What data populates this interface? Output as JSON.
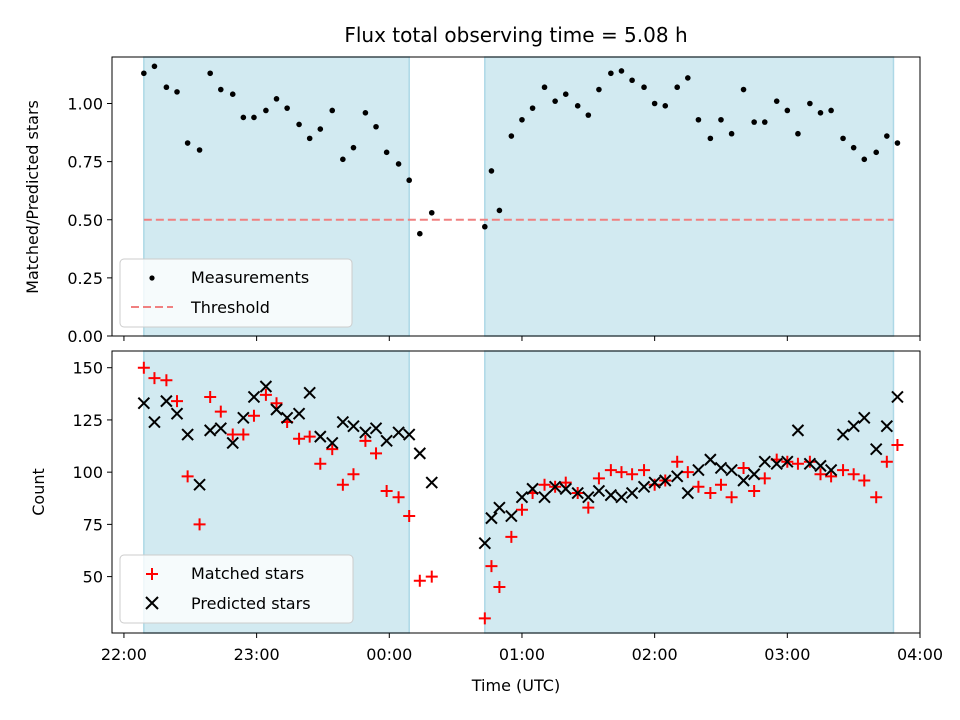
{
  "chart_data": [
    {
      "type": "scatter",
      "title": "Flux total observing time = 5.08 h",
      "xlabel": "",
      "ylabel": "Matched/Predicted stars",
      "xlim": [
        -0.09,
        6.0
      ],
      "ylim": [
        0.0,
        1.2
      ],
      "yticks": [
        0.0,
        0.25,
        0.5,
        0.75,
        1.0
      ],
      "ytick_labels": [
        "0.00",
        "0.25",
        "0.50",
        "0.75",
        "1.00"
      ],
      "grid": false,
      "legend": "lower-left",
      "shaded_intervals": [
        [
          0.15,
          2.15
        ],
        [
          2.72,
          5.8
        ]
      ],
      "threshold": {
        "name": "Threshold",
        "value": 0.5,
        "color": "#f08080"
      },
      "series": [
        {
          "name": "Measurements",
          "color": "#000000",
          "marker": "dot",
          "points": [
            [
              0.15,
              1.13
            ],
            [
              0.23,
              1.16
            ],
            [
              0.32,
              1.07
            ],
            [
              0.4,
              1.05
            ],
            [
              0.48,
              0.83
            ],
            [
              0.57,
              0.8
            ],
            [
              0.65,
              1.13
            ],
            [
              0.73,
              1.06
            ],
            [
              0.82,
              1.04
            ],
            [
              0.9,
              0.94
            ],
            [
              0.98,
              0.94
            ],
            [
              1.07,
              0.97
            ],
            [
              1.15,
              1.02
            ],
            [
              1.23,
              0.98
            ],
            [
              1.32,
              0.91
            ],
            [
              1.4,
              0.85
            ],
            [
              1.48,
              0.89
            ],
            [
              1.57,
              0.97
            ],
            [
              1.65,
              0.76
            ],
            [
              1.73,
              0.81
            ],
            [
              1.82,
              0.96
            ],
            [
              1.9,
              0.9
            ],
            [
              1.98,
              0.79
            ],
            [
              2.07,
              0.74
            ],
            [
              2.15,
              0.67
            ],
            [
              2.23,
              0.44
            ],
            [
              2.32,
              0.53
            ],
            [
              2.72,
              0.47
            ],
            [
              2.77,
              0.71
            ],
            [
              2.83,
              0.54
            ],
            [
              2.92,
              0.86
            ],
            [
              3.0,
              0.93
            ],
            [
              3.08,
              0.98
            ],
            [
              3.17,
              1.07
            ],
            [
              3.25,
              1.01
            ],
            [
              3.33,
              1.04
            ],
            [
              3.42,
              0.99
            ],
            [
              3.5,
              0.95
            ],
            [
              3.58,
              1.06
            ],
            [
              3.67,
              1.13
            ],
            [
              3.75,
              1.14
            ],
            [
              3.83,
              1.1
            ],
            [
              3.92,
              1.07
            ],
            [
              4.0,
              1.0
            ],
            [
              4.08,
              0.99
            ],
            [
              4.17,
              1.07
            ],
            [
              4.25,
              1.11
            ],
            [
              4.33,
              0.93
            ],
            [
              4.42,
              0.85
            ],
            [
              4.5,
              0.93
            ],
            [
              4.58,
              0.87
            ],
            [
              4.67,
              1.06
            ],
            [
              4.75,
              0.92
            ],
            [
              4.83,
              0.92
            ],
            [
              4.92,
              1.01
            ],
            [
              5.0,
              0.97
            ],
            [
              5.08,
              0.87
            ],
            [
              5.17,
              1.0
            ],
            [
              5.25,
              0.96
            ],
            [
              5.33,
              0.97
            ],
            [
              5.42,
              0.85
            ],
            [
              5.5,
              0.81
            ],
            [
              5.58,
              0.76
            ],
            [
              5.67,
              0.79
            ],
            [
              5.75,
              0.86
            ],
            [
              5.83,
              0.83
            ]
          ]
        }
      ]
    },
    {
      "type": "scatter",
      "title": "",
      "xlabel": "Time (UTC)",
      "ylabel": "Count",
      "xlim": [
        -0.09,
        6.0
      ],
      "ylim": [
        23,
        158
      ],
      "xticks": [
        0,
        1,
        2,
        3,
        4,
        5,
        6
      ],
      "xtick_labels": [
        "22:00",
        "23:00",
        "00:00",
        "01:00",
        "02:00",
        "03:00",
        "04:00"
      ],
      "yticks": [
        50,
        75,
        100,
        125,
        150
      ],
      "ytick_labels": [
        "50",
        "75",
        "100",
        "125",
        "150"
      ],
      "grid": false,
      "legend": "lower-left",
      "shaded_intervals": [
        [
          0.15,
          2.15
        ],
        [
          2.72,
          5.8
        ]
      ],
      "series": [
        {
          "name": "Matched stars",
          "color": "#ff0000",
          "marker": "plus",
          "points": [
            [
              0.15,
              150
            ],
            [
              0.23,
              145
            ],
            [
              0.32,
              144
            ],
            [
              0.4,
              134
            ],
            [
              0.48,
              98
            ],
            [
              0.57,
              75
            ],
            [
              0.65,
              136
            ],
            [
              0.73,
              129
            ],
            [
              0.82,
              118
            ],
            [
              0.9,
              118
            ],
            [
              0.98,
              127
            ],
            [
              1.07,
              137
            ],
            [
              1.15,
              133
            ],
            [
              1.23,
              124
            ],
            [
              1.32,
              116
            ],
            [
              1.4,
              117
            ],
            [
              1.48,
              104
            ],
            [
              1.57,
              111
            ],
            [
              1.65,
              94
            ],
            [
              1.73,
              99
            ],
            [
              1.82,
              115
            ],
            [
              1.9,
              109
            ],
            [
              1.98,
              91
            ],
            [
              2.07,
              88
            ],
            [
              2.15,
              79
            ],
            [
              2.23,
              48
            ],
            [
              2.32,
              50
            ],
            [
              2.72,
              30
            ],
            [
              2.77,
              55
            ],
            [
              2.83,
              45
            ],
            [
              2.92,
              69
            ],
            [
              3.0,
              82
            ],
            [
              3.08,
              90
            ],
            [
              3.17,
              94
            ],
            [
              3.25,
              93
            ],
            [
              3.33,
              95
            ],
            [
              3.42,
              90
            ],
            [
              3.5,
              83
            ],
            [
              3.58,
              97
            ],
            [
              3.67,
              101
            ],
            [
              3.75,
              100
            ],
            [
              3.83,
              99
            ],
            [
              3.92,
              101
            ],
            [
              4.0,
              94
            ],
            [
              4.08,
              96
            ],
            [
              4.17,
              105
            ],
            [
              4.25,
              100
            ],
            [
              4.33,
              93
            ],
            [
              4.42,
              90
            ],
            [
              4.5,
              94
            ],
            [
              4.58,
              88
            ],
            [
              4.67,
              102
            ],
            [
              4.75,
              91
            ],
            [
              4.83,
              97
            ],
            [
              4.92,
              106
            ],
            [
              5.0,
              105
            ],
            [
              5.08,
              104
            ],
            [
              5.17,
              105
            ],
            [
              5.25,
              99
            ],
            [
              5.33,
              98
            ],
            [
              5.42,
              101
            ],
            [
              5.5,
              99
            ],
            [
              5.58,
              96
            ],
            [
              5.67,
              88
            ],
            [
              5.75,
              105
            ],
            [
              5.83,
              113
            ]
          ]
        },
        {
          "name": "Predicted stars",
          "color": "#000000",
          "marker": "x",
          "points": [
            [
              0.15,
              133
            ],
            [
              0.23,
              124
            ],
            [
              0.32,
              134
            ],
            [
              0.4,
              128
            ],
            [
              0.48,
              118
            ],
            [
              0.57,
              94
            ],
            [
              0.65,
              120
            ],
            [
              0.73,
              121
            ],
            [
              0.82,
              114
            ],
            [
              0.9,
              126
            ],
            [
              0.98,
              136
            ],
            [
              1.07,
              141
            ],
            [
              1.15,
              130
            ],
            [
              1.23,
              126
            ],
            [
              1.32,
              128
            ],
            [
              1.4,
              138
            ],
            [
              1.48,
              117
            ],
            [
              1.57,
              114
            ],
            [
              1.65,
              124
            ],
            [
              1.73,
              122
            ],
            [
              1.82,
              119
            ],
            [
              1.9,
              121
            ],
            [
              1.98,
              115
            ],
            [
              2.07,
              119
            ],
            [
              2.15,
              118
            ],
            [
              2.23,
              109
            ],
            [
              2.32,
              95
            ],
            [
              2.72,
              66
            ],
            [
              2.77,
              78
            ],
            [
              2.83,
              83
            ],
            [
              2.92,
              79
            ],
            [
              3.0,
              88
            ],
            [
              3.08,
              92
            ],
            [
              3.17,
              88
            ],
            [
              3.25,
              93
            ],
            [
              3.33,
              92
            ],
            [
              3.42,
              90
            ],
            [
              3.5,
              88
            ],
            [
              3.58,
              91
            ],
            [
              3.67,
              89
            ],
            [
              3.75,
              88
            ],
            [
              3.83,
              90
            ],
            [
              3.92,
              93
            ],
            [
              4.0,
              95
            ],
            [
              4.08,
              96
            ],
            [
              4.17,
              98
            ],
            [
              4.25,
              90
            ],
            [
              4.33,
              101
            ],
            [
              4.42,
              106
            ],
            [
              4.5,
              102
            ],
            [
              4.58,
              101
            ],
            [
              4.67,
              96
            ],
            [
              4.75,
              99
            ],
            [
              4.83,
              105
            ],
            [
              4.92,
              104
            ],
            [
              5.0,
              105
            ],
            [
              5.08,
              120
            ],
            [
              5.17,
              104
            ],
            [
              5.25,
              103
            ],
            [
              5.33,
              101
            ],
            [
              5.42,
              118
            ],
            [
              5.5,
              122
            ],
            [
              5.58,
              126
            ],
            [
              5.67,
              111
            ],
            [
              5.75,
              122
            ],
            [
              5.83,
              136
            ]
          ]
        }
      ]
    }
  ]
}
